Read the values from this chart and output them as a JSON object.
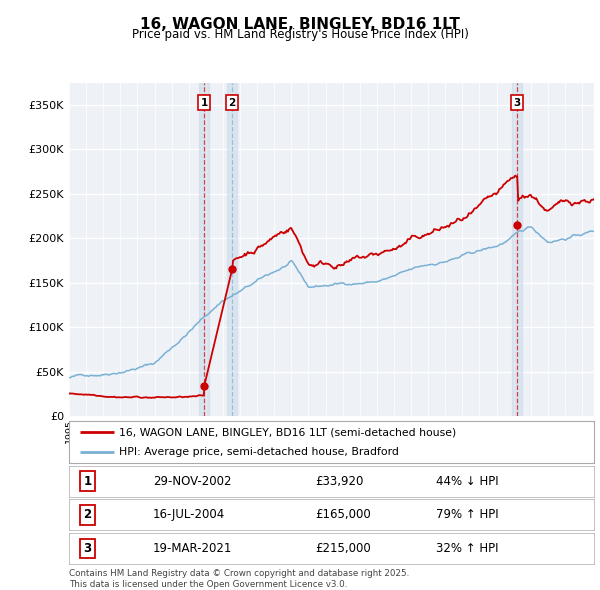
{
  "title": "16, WAGON LANE, BINGLEY, BD16 1LT",
  "subtitle": "Price paid vs. HM Land Registry's House Price Index (HPI)",
  "ytick_values": [
    0,
    50000,
    100000,
    150000,
    200000,
    250000,
    300000,
    350000
  ],
  "ylim": [
    0,
    375000
  ],
  "xlim_start": 1995.0,
  "xlim_end": 2025.7,
  "sale_color": "#cc0000",
  "hpi_color": "#7ab0d4",
  "vline_color": "#cc0000",
  "vline_alpha": 0.6,
  "shade_color": "#c8d8e8",
  "shade_alpha": 0.5,
  "sales": [
    {
      "date": 2002.91,
      "price": 33920,
      "label": "1"
    },
    {
      "date": 2004.54,
      "price": 165000,
      "label": "2"
    },
    {
      "date": 2021.21,
      "price": 215000,
      "label": "3"
    }
  ],
  "legend_sale_label": "16, WAGON LANE, BINGLEY, BD16 1LT (semi-detached house)",
  "legend_hpi_label": "HPI: Average price, semi-detached house, Bradford",
  "table_rows": [
    {
      "num": "1",
      "date": "29-NOV-2002",
      "price": "£33,920",
      "change": "44% ↓ HPI"
    },
    {
      "num": "2",
      "date": "16-JUL-2004",
      "price": "£165,000",
      "change": "79% ↑ HPI"
    },
    {
      "num": "3",
      "date": "19-MAR-2021",
      "price": "£215,000",
      "change": "32% ↑ HPI"
    }
  ],
  "footer": "Contains HM Land Registry data © Crown copyright and database right 2025.\nThis data is licensed under the Open Government Licence v3.0.",
  "background_color": "#ffffff",
  "plot_bg_color": "#eef2f7"
}
